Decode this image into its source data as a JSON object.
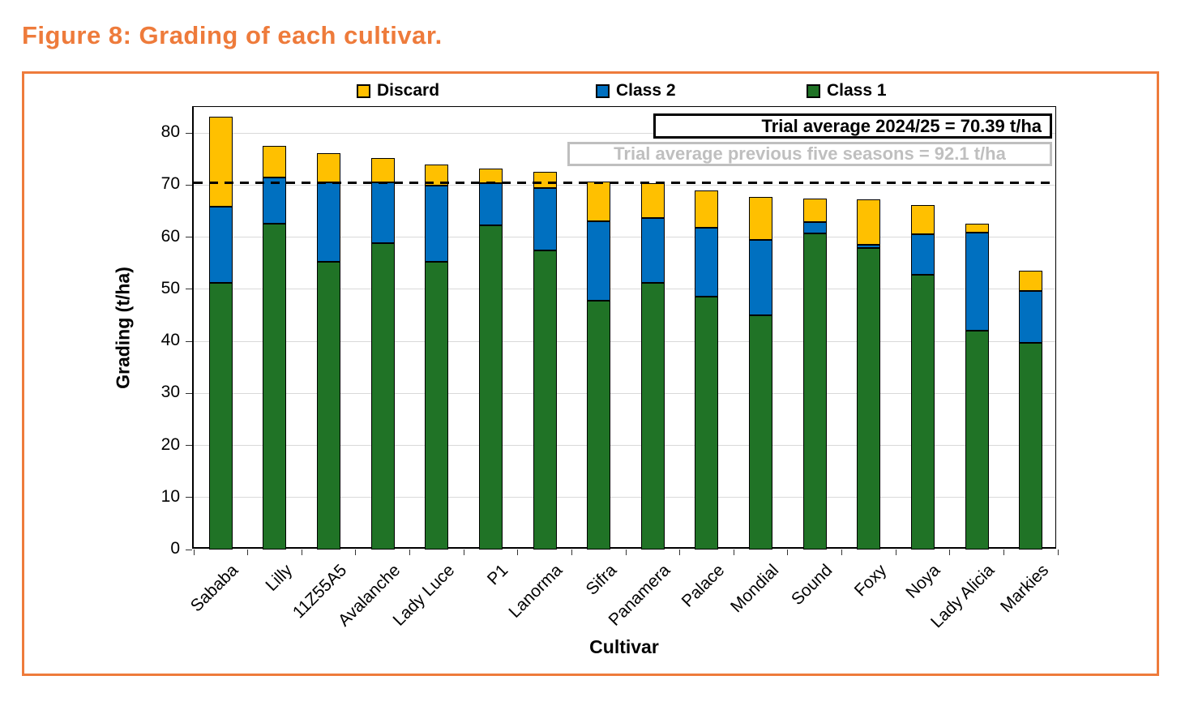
{
  "figure": {
    "title": "Figure 8: Grading of each cultivar."
  },
  "legend": {
    "items": [
      {
        "label": "Discard",
        "color": "#FFC000"
      },
      {
        "label": "Class 2",
        "color": "#0070C0"
      },
      {
        "label": "Class 1",
        "color": "#207326"
      }
    ]
  },
  "annotations": {
    "trial_avg_current": "Trial average 2024/25 = 70.39 t/ha",
    "trial_avg_previous": "Trial average previous five seasons = 92.1 t/ha"
  },
  "colors": {
    "accent_orange": "#EE7B3B",
    "grid": "#D9D9D9",
    "annotation_gray": "#BFBFBF",
    "bar_border": "#000000",
    "reference_line": "#000000"
  },
  "chart_data": {
    "type": "bar",
    "stacked": true,
    "title": "",
    "xlabel": "Cultivar",
    "ylabel": "Grading (t/ha)",
    "ylim": [
      0,
      85
    ],
    "yticks": [
      0,
      10,
      20,
      30,
      40,
      50,
      60,
      70,
      80
    ],
    "grid": "horizontal",
    "legend_position": "top",
    "reference_line": {
      "value": 70.39,
      "style": "dashed",
      "color": "#000000",
      "label": "Trial average 2024/25 = 70.39 t/ha"
    },
    "categories": [
      "Sababa",
      "Lilly",
      "11Z55A5",
      "Avalanche",
      "Lady Luce",
      "P1",
      "Lanorma",
      "Sifra",
      "Panamera",
      "Palace",
      "Mondial",
      "Sound",
      "Foxy",
      "Noya",
      "Lady Alicia",
      "Markies"
    ],
    "series": [
      {
        "name": "Class 1",
        "color": "#207326",
        "values": [
          51.2,
          62.6,
          55.3,
          58.9,
          55.2,
          62.3,
          57.5,
          47.8,
          51.2,
          48.6,
          45.0,
          60.7,
          57.9,
          52.8,
          42.0,
          39.7
        ]
      },
      {
        "name": "Class 2",
        "color": "#0070C0",
        "values": [
          14.6,
          8.9,
          15.2,
          11.6,
          14.7,
          8.0,
          11.9,
          15.3,
          12.5,
          13.2,
          14.5,
          2.2,
          0.6,
          7.8,
          18.9,
          9.9
        ]
      },
      {
        "name": "Discard",
        "color": "#FFC000",
        "values": [
          17.3,
          6.0,
          5.6,
          4.7,
          4.0,
          2.8,
          3.1,
          7.6,
          6.7,
          7.1,
          8.2,
          4.5,
          8.8,
          5.5,
          1.7,
          3.9
        ]
      }
    ],
    "totals": [
      83.1,
      77.5,
      76.1,
      75.2,
      73.9,
      73.1,
      72.5,
      70.7,
      70.4,
      68.9,
      67.7,
      67.4,
      67.3,
      66.1,
      62.6,
      53.5
    ]
  }
}
